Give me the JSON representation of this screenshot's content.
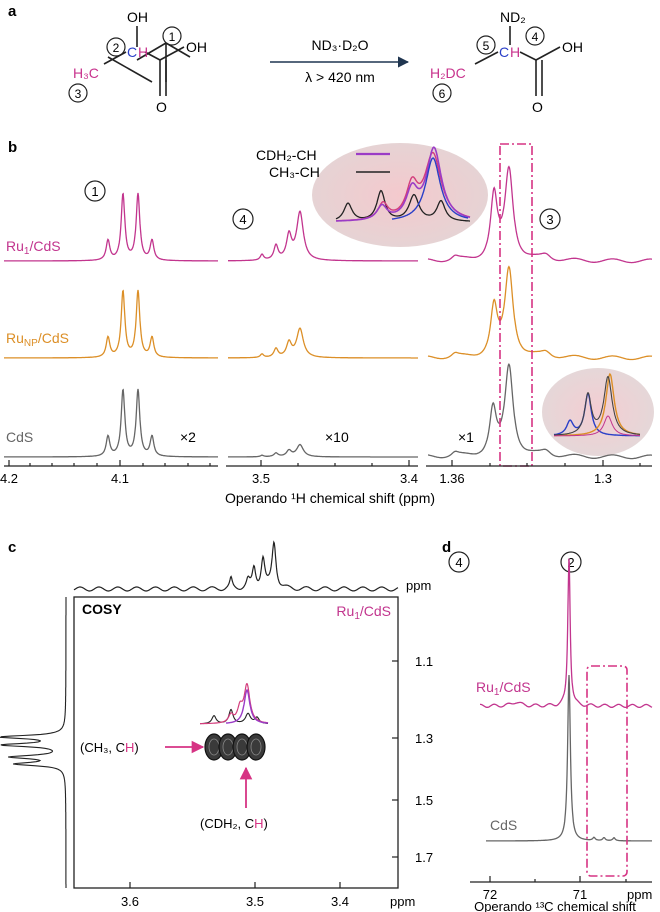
{
  "panels": {
    "a": "a",
    "b": "b",
    "c": "c",
    "d": "d"
  },
  "scheme": {
    "reagent": "ND₃·D₂O",
    "condition": "λ > 420 nm",
    "reactant_labels": {
      "oh": "OH",
      "ch": "CH",
      "h3c": "H₃C",
      "oh_acid": "OH",
      "o": "O"
    },
    "product_labels": {
      "nd2": "ND₂",
      "ch": "CH",
      "h2dc": "H₂DC",
      "oh_acid": "OH",
      "o": "O"
    },
    "site_numbers": [
      "1",
      "2",
      "3",
      "4",
      "5",
      "6"
    ]
  },
  "colors": {
    "ru1": "#c2358e",
    "runp": "#dc8f27",
    "cds": "#666666",
    "magenta": "#c8338d",
    "blue": "#2a3fc8",
    "arrow": "#1f3550"
  },
  "chart_data": [
    {
      "panel": "b",
      "type": "line",
      "xlabel": "Operando ¹H chemical shift (ppm)",
      "series": [
        {
          "name": "Ru₁/CdS",
          "region1_peaks_ppm": [
            4.128,
            4.118,
            4.108,
            4.098
          ],
          "region1_rel_intensity": [
            0.25,
            1.0,
            1.0,
            0.25
          ]
        },
        {
          "name": "Ru_NP/CdS",
          "region1_peaks_ppm": [
            4.128,
            4.118,
            4.108,
            4.098
          ],
          "region1_rel_intensity": [
            0.25,
            1.0,
            1.0,
            0.25
          ]
        },
        {
          "name": "CdS",
          "region1_peaks_ppm": [
            4.128,
            4.118,
            4.108,
            4.098
          ],
          "region1_rel_intensity": [
            0.25,
            1.0,
            1.0,
            0.25
          ]
        }
      ],
      "regions": [
        {
          "label": "1",
          "xlim": [
            4.2,
            4.04
          ],
          "ticks": [
            "4.2",
            "4.1"
          ],
          "scale_note": "×2"
        },
        {
          "label": "4",
          "xlim": [
            3.52,
            3.4
          ],
          "ticks": [
            "3.5",
            "3.4"
          ],
          "scale_note": "×10"
        },
        {
          "label": "3",
          "xlim": [
            1.37,
            1.28
          ],
          "ticks": [
            "1.36",
            "1.3"
          ],
          "scale_note": "×1"
        }
      ],
      "legend": [
        "CDH₂-CH",
        "CH₃-CH"
      ],
      "highlight_ppm_range": [
        1.349,
        1.337
      ]
    },
    {
      "panel": "c",
      "type": "heatmap",
      "title": "COSY",
      "sample": "Ru₁/CdS",
      "x_ticks": [
        "3.6",
        "3.5",
        "3.4"
      ],
      "y_ticks": [
        "1.1",
        "1.3",
        "1.5",
        "1.7"
      ],
      "axis_unit": "ppm",
      "top_trace_label": "4",
      "annotations": [
        {
          "text_a": "(CH₃, C",
          "text_b": "H",
          "text_c": ")",
          "x": 3.5,
          "y": 1.34
        },
        {
          "text_a": "(CDH₂, C",
          "text_b": "H",
          "text_c": ")",
          "x": 3.485,
          "y": 1.34
        }
      ]
    },
    {
      "panel": "d",
      "type": "line",
      "xlabel": "Operando ¹³C chemical shift",
      "x_unit": "ppm",
      "ticks": [
        "72",
        "71"
      ],
      "site_label": "2",
      "series": [
        {
          "name": "Ru₁/CdS",
          "peak_ppm": 71.15
        },
        {
          "name": "CdS",
          "peak_ppm": 71.15
        }
      ]
    }
  ]
}
